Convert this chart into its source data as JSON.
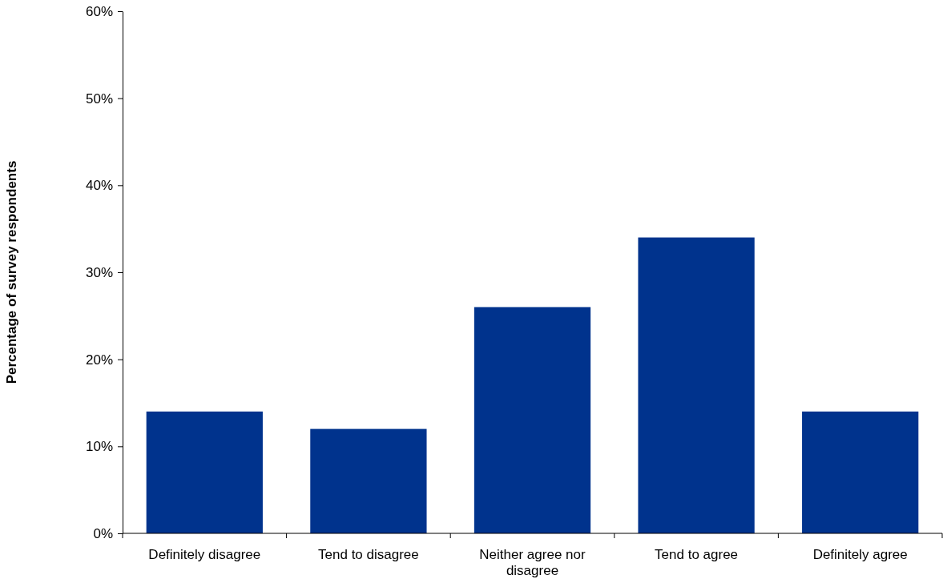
{
  "chart_data": {
    "type": "bar",
    "ylabel": "Percentage of survey respondents",
    "categories": [
      "Definitely disagree",
      "Tend to disagree",
      "Neither agree nor disagree",
      "Tend to agree",
      "Definitely agree"
    ],
    "values": [
      14,
      12,
      26,
      34,
      14
    ],
    "color": "#00338d",
    "ylim": [
      0,
      60
    ],
    "yticks": [
      {
        "value": 0,
        "label": "0%"
      },
      {
        "value": 10,
        "label": "10%"
      },
      {
        "value": 20,
        "label": "20%"
      },
      {
        "value": 30,
        "label": "30%"
      },
      {
        "value": 40,
        "label": "40%"
      },
      {
        "value": 50,
        "label": "50%"
      },
      {
        "value": 60,
        "label": "60%"
      }
    ],
    "grid": false
  }
}
